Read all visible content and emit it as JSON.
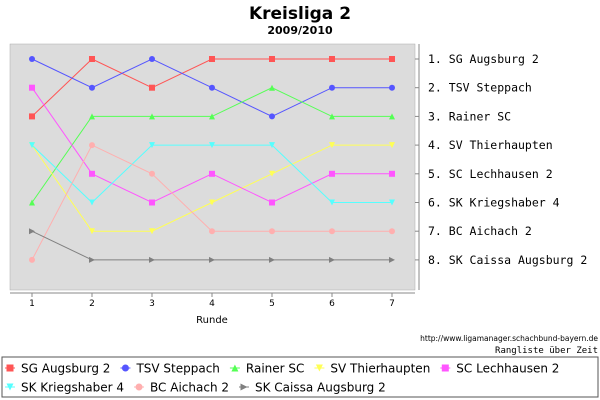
{
  "chart_data": {
    "type": "line",
    "title": "Kreisliga 2",
    "subtitle": "2009/2010",
    "xlabel": "Runde",
    "x": [
      1,
      2,
      3,
      4,
      5,
      6,
      7
    ],
    "ylim": [
      1,
      8
    ],
    "y_inverted": true,
    "grid": false,
    "legend_position": "bottom",
    "rank_labels": [
      "1. SG Augsburg 2",
      "2. TSV Steppach",
      "3. Rainer SC",
      "4. SV Thierhaupten",
      "5. SC Lechhausen 2",
      "6. SK Kriegshaber 4",
      "7. BC Aichach 2",
      "8. SK Caissa Augsburg 2"
    ],
    "series": [
      {
        "name": "SG Augsburg 2",
        "color": "#ff5555",
        "marker": "square",
        "values": [
          3,
          1,
          2,
          1,
          1,
          1,
          1
        ]
      },
      {
        "name": "TSV Steppach",
        "color": "#5555ff",
        "marker": "circle",
        "values": [
          1,
          2,
          1,
          2,
          3,
          2,
          2
        ]
      },
      {
        "name": "Rainer SC",
        "color": "#55ff55",
        "marker": "triangle-up",
        "values": [
          6,
          3,
          3,
          3,
          2,
          3,
          3
        ]
      },
      {
        "name": "SV Thierhaupten",
        "color": "#ffff55",
        "marker": "triangle-down",
        "values": [
          4,
          7,
          7,
          6,
          5,
          4,
          4
        ]
      },
      {
        "name": "SC Lechhausen 2",
        "color": "#ff55ff",
        "marker": "square",
        "values": [
          2,
          5,
          6,
          5,
          6,
          5,
          5
        ]
      },
      {
        "name": "SK Kriegshaber 4",
        "color": "#55ffff",
        "marker": "triangle-down",
        "values": [
          4,
          6,
          4,
          4,
          4,
          6,
          6
        ]
      },
      {
        "name": "BC Aichach 2",
        "color": "#ffafaf",
        "marker": "circle",
        "values": [
          8,
          4,
          5,
          7,
          7,
          7,
          7
        ]
      },
      {
        "name": "SK Caissa Augsburg 2",
        "color": "#808080",
        "marker": "triangle-right",
        "values": [
          7,
          8,
          8,
          8,
          8,
          8,
          8
        ]
      }
    ]
  },
  "footer": {
    "url": "http://www.ligamanager.schachbund-bayern.de",
    "caption": "Rangliste über Zeit"
  }
}
